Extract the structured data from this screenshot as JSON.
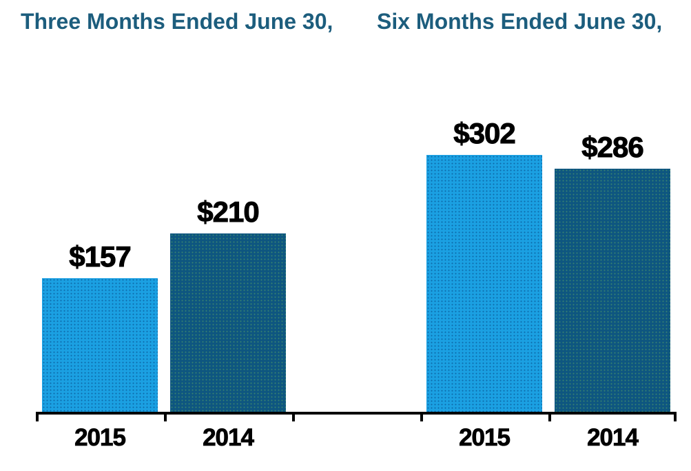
{
  "chart_data": {
    "type": "bar",
    "title": "",
    "xlabel": "",
    "ylabel": "",
    "y_axis_visible": false,
    "grid": false,
    "legend": "none",
    "value_prefix": "$",
    "groups": [
      {
        "title": "Three Months Ended June 30,",
        "points": [
          {
            "category": "2015",
            "series": "2015",
            "value": 157,
            "label": "$157"
          },
          {
            "category": "2014",
            "series": "2014",
            "value": 210,
            "label": "$210"
          }
        ]
      },
      {
        "title": "Six Months Ended June 30,",
        "points": [
          {
            "category": "2015",
            "series": "2015",
            "value": 302,
            "label": "$302"
          },
          {
            "category": "2014",
            "series": "2014",
            "value": 286,
            "label": "$286"
          }
        ]
      }
    ],
    "series": [
      {
        "name": "2015",
        "color": "#1BA0E2"
      },
      {
        "name": "2014",
        "color": "#0E5680"
      }
    ],
    "colors": {
      "title_text": "#1C5D7D",
      "value_label_text": "#000000",
      "year_label_text": "#000000",
      "axis": "#000000",
      "background": "#FFFFFF"
    }
  }
}
